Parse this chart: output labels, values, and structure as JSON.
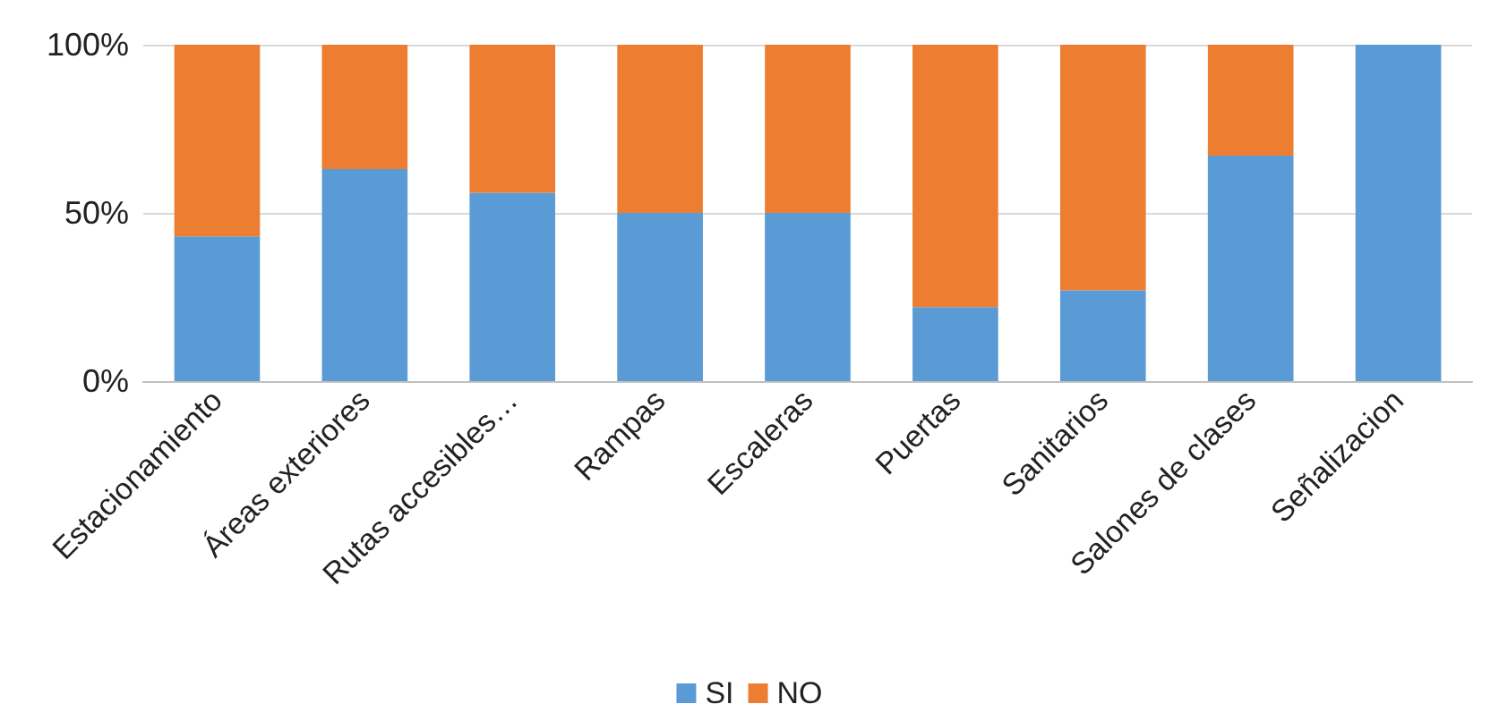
{
  "chart_data": {
    "type": "bar",
    "stacked": true,
    "categories": [
      "Estacionamiento",
      "Áreas exteriores",
      "Rutas accesibles…",
      "Rampas",
      "Escaleras",
      "Puertas",
      "Sanitarios",
      "Salones de clases",
      "Señalizacion"
    ],
    "series": [
      {
        "name": "SI",
        "color": "#5b9bd5",
        "values": [
          43,
          63,
          56,
          50,
          50,
          22,
          27,
          67,
          100
        ]
      },
      {
        "name": "NO",
        "color": "#ed7d31",
        "values": [
          57,
          37,
          44,
          50,
          50,
          78,
          73,
          33,
          0
        ]
      }
    ],
    "ylim": [
      0,
      100
    ],
    "yticks": [
      {
        "value": 0,
        "label": "0%"
      },
      {
        "value": 50,
        "label": "50%"
      },
      {
        "value": 100,
        "label": "100%"
      }
    ],
    "grid": "y",
    "legend": "bottom"
  }
}
